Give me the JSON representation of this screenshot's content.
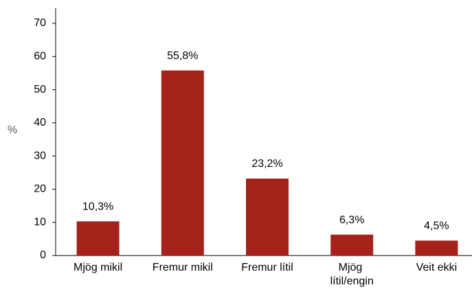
{
  "chart_data": {
    "type": "bar",
    "y_label": "%",
    "categories": [
      "Mjög mikil",
      "Fremur mikil",
      "Fremur lítil",
      "Mjög lítil/engin",
      "Veit ekki"
    ],
    "values": [
      10.3,
      55.8,
      23.2,
      6.3,
      4.5
    ],
    "value_labels": [
      "10,3%",
      "55,8%",
      "23,2%",
      "6,3%",
      "4,5%"
    ],
    "color": "#a5221a",
    "ylim": [
      0,
      70
    ],
    "yticks": [
      0,
      10,
      20,
      30,
      40,
      50,
      60,
      70
    ],
    "grid": false
  }
}
